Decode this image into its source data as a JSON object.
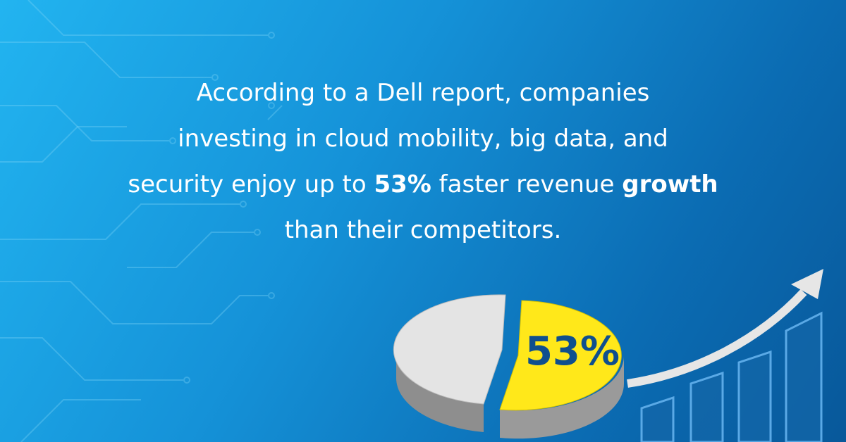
{
  "headline": {
    "lines": [
      [
        "According to a Dell report, companies"
      ],
      [
        "investing in cloud mobility, big data, and"
      ],
      [
        "security enjoy up to ",
        "53%",
        " faster revenue ",
        "growth"
      ],
      [
        "than their competitors."
      ]
    ]
  },
  "pie_label": "53%"
}
